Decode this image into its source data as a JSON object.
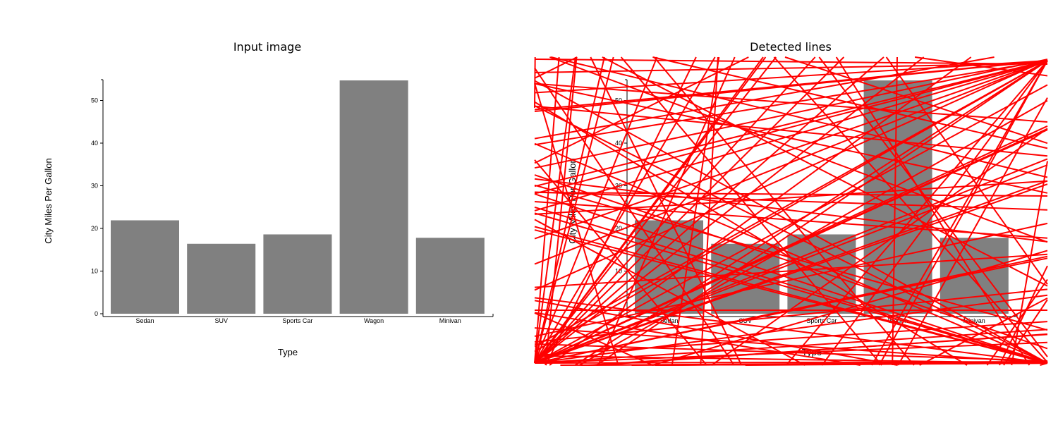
{
  "panels": {
    "left_title": "Input image",
    "right_title": "Detected lines"
  },
  "colors": {
    "bar": "#808080",
    "detected_line": "#ff0000",
    "background": "#ffffff"
  },
  "chart_data": [
    {
      "type": "bar",
      "title": "Input image",
      "categories": [
        "Sedan",
        "SUV",
        "Sports Car",
        "Wagon",
        "Minivan"
      ],
      "values": [
        21.9,
        16.4,
        18.6,
        54.7,
        17.8
      ],
      "xlabel": "Type",
      "ylabel": "City Miles Per Gallon",
      "ylim": [
        0,
        55
      ],
      "yticks": [
        0,
        10,
        20,
        30,
        40,
        50
      ],
      "grid": false,
      "legend": "none"
    },
    {
      "type": "bar",
      "title": "Detected lines",
      "categories": [
        "Sedan",
        "SUV",
        "Sports Car",
        "Wagon",
        "Minivan"
      ],
      "values": [
        21.9,
        16.4,
        18.6,
        54.7,
        17.8
      ],
      "xlabel": "Type",
      "ylabel": "City Miles Per Gallon",
      "ylim": [
        0,
        55
      ],
      "yticks": [
        0,
        10,
        20,
        30,
        40,
        50
      ],
      "grid": false,
      "legend": "none",
      "overlay": "detected lines drawn in red"
    }
  ]
}
